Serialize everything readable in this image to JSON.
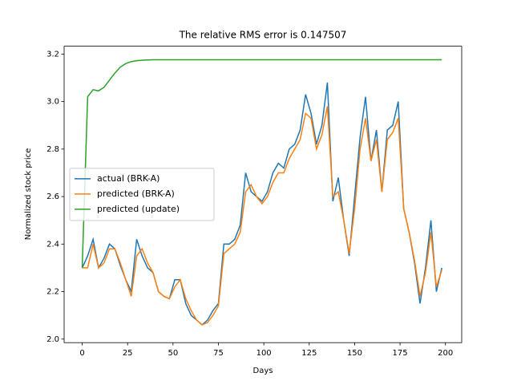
{
  "chart_data": {
    "type": "line",
    "title": "The relative RMS error is 0.147507",
    "x_label": "Days",
    "y_label": "Normalized stock price",
    "x": [
      0,
      3,
      6,
      9,
      12,
      15,
      18,
      21,
      24,
      27,
      30,
      33,
      36,
      39,
      42,
      45,
      48,
      51,
      54,
      57,
      60,
      63,
      66,
      69,
      72,
      75,
      78,
      81,
      84,
      87,
      90,
      93,
      96,
      99,
      102,
      105,
      108,
      111,
      114,
      117,
      120,
      123,
      126,
      129,
      132,
      135,
      138,
      141,
      144,
      147,
      150,
      153,
      156,
      159,
      162,
      165,
      168,
      171,
      174,
      177,
      180,
      183,
      186,
      189,
      192,
      195,
      198
    ],
    "series": [
      {
        "name": "actual (BRK-A)",
        "color": "#1f77b4",
        "values": [
          2.3,
          2.35,
          2.42,
          2.3,
          2.34,
          2.4,
          2.38,
          2.31,
          2.25,
          2.2,
          2.42,
          2.35,
          2.3,
          2.28,
          2.2,
          2.18,
          2.17,
          2.25,
          2.25,
          2.15,
          2.1,
          2.08,
          2.06,
          2.08,
          2.12,
          2.15,
          2.4,
          2.4,
          2.42,
          2.48,
          2.7,
          2.62,
          2.6,
          2.58,
          2.62,
          2.7,
          2.74,
          2.72,
          2.8,
          2.82,
          2.88,
          3.03,
          2.95,
          2.82,
          2.9,
          3.08,
          2.58,
          2.68,
          2.5,
          2.35,
          2.6,
          2.85,
          3.02,
          2.75,
          2.88,
          2.62,
          2.88,
          2.9,
          3.0,
          2.55,
          2.45,
          2.32,
          2.15,
          2.3,
          2.5,
          2.2,
          2.3
        ]
      },
      {
        "name": "predicted (BRK-A)",
        "color": "#ff7f0e",
        "values": [
          2.3,
          2.3,
          2.4,
          2.3,
          2.32,
          2.38,
          2.38,
          2.32,
          2.25,
          2.18,
          2.35,
          2.38,
          2.32,
          2.28,
          2.2,
          2.18,
          2.17,
          2.22,
          2.25,
          2.17,
          2.12,
          2.08,
          2.06,
          2.07,
          2.1,
          2.14,
          2.36,
          2.38,
          2.4,
          2.45,
          2.62,
          2.65,
          2.6,
          2.57,
          2.6,
          2.66,
          2.7,
          2.7,
          2.76,
          2.8,
          2.84,
          2.95,
          2.93,
          2.8,
          2.86,
          2.98,
          2.6,
          2.62,
          2.5,
          2.36,
          2.55,
          2.8,
          2.93,
          2.75,
          2.84,
          2.62,
          2.84,
          2.87,
          2.93,
          2.55,
          2.45,
          2.33,
          2.18,
          2.28,
          2.45,
          2.22,
          2.29
        ]
      },
      {
        "name": "predicted (update)",
        "color": "#2ca02c",
        "values": [
          2.3,
          3.02,
          3.05,
          3.045,
          3.06,
          3.09,
          3.12,
          3.145,
          3.16,
          3.168,
          3.172,
          3.174,
          3.175,
          3.176,
          3.176,
          3.176,
          3.176,
          3.176,
          3.176,
          3.176,
          3.176,
          3.176,
          3.176,
          3.176,
          3.176,
          3.176,
          3.176,
          3.176,
          3.176,
          3.176,
          3.176,
          3.176,
          3.176,
          3.176,
          3.176,
          3.176,
          3.176,
          3.176,
          3.176,
          3.176,
          3.176,
          3.176,
          3.176,
          3.176,
          3.176,
          3.176,
          3.176,
          3.176,
          3.176,
          3.176,
          3.176,
          3.176,
          3.176,
          3.176,
          3.176,
          3.176,
          3.176,
          3.176,
          3.176,
          3.176,
          3.176,
          3.176,
          3.176,
          3.176,
          3.176,
          3.176,
          3.176
        ]
      }
    ],
    "xlim": [
      -9.95,
      208.95
    ],
    "xticks": [
      0,
      25,
      50,
      75,
      100,
      125,
      150,
      175,
      200
    ],
    "ylim": [
      1.985,
      3.233
    ],
    "yticks": [
      {
        "value": 2.0,
        "label": "2.0"
      },
      2.2,
      2.4,
      2.6,
      2.8,
      {
        "value": 3.0,
        "label": "3.0"
      },
      3.2
    ],
    "legend": "center left"
  }
}
